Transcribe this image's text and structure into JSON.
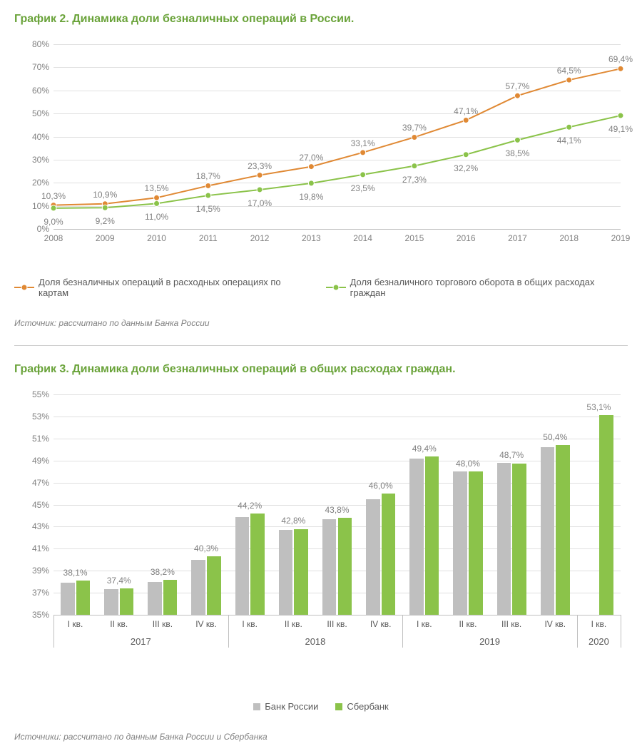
{
  "chart1": {
    "type": "line",
    "title": "График 2. Динамика доли безналичных операций в России.",
    "source": "Источник: рассчитано по данным Банка России",
    "categories": [
      "2008",
      "2009",
      "2010",
      "2011",
      "2012",
      "2013",
      "2014",
      "2015",
      "2016",
      "2017",
      "2018",
      "2019"
    ],
    "ylim": [
      0,
      80
    ],
    "ytick_step": 10,
    "y_suffix": "%",
    "grid_color": "#e0e0e0",
    "axis_color": "#bfbfbf",
    "background": "#ffffff",
    "series": [
      {
        "name": "Доля безналичных операций в расходных операциях по картам",
        "color": "#e08934",
        "marker": "circle",
        "line_width": 2,
        "values": [
          10.3,
          10.9,
          13.5,
          18.7,
          23.3,
          27.0,
          33.1,
          39.7,
          47.1,
          57.7,
          64.5,
          69.4
        ],
        "labels": [
          "10,3%",
          "10,9%",
          "13,5%",
          "18,7%",
          "23,3%",
          "27,0%",
          "33,1%",
          "39,7%",
          "47,1%",
          "57,7%",
          "64,5%",
          "69,4%"
        ]
      },
      {
        "name": "Доля безналичного торгового оборота в общих расходах граждан",
        "color": "#8bc34a",
        "marker": "circle",
        "line_width": 2,
        "values": [
          9.0,
          9.2,
          11.0,
          14.5,
          17.0,
          19.8,
          23.5,
          27.3,
          32.2,
          38.5,
          44.1,
          49.1
        ],
        "labels": [
          "9,0%",
          "9,2%",
          "11,0%",
          "14,5%",
          "17,0%",
          "19,8%",
          "23,5%",
          "27,3%",
          "32,2%",
          "38,5%",
          "44,1%",
          "49,1%"
        ]
      }
    ],
    "title_fontsize": 16,
    "label_fontsize": 12,
    "tick_fontsize": 12
  },
  "chart2": {
    "type": "bar",
    "title": "График 3. Динамика доли безналичных операций в общих расходах граждан.",
    "source": "Источники: рассчитано по данным Банка России и Сбербанка",
    "ylim": [
      35,
      55
    ],
    "ytick_step": 2,
    "y_suffix": "%",
    "grid_color": "#e0e0e0",
    "axis_color": "#bfbfbf",
    "background": "#ffffff",
    "bar_width": 0.32,
    "group_gap": 0.36,
    "categories": [
      "I кв.",
      "II кв.",
      "III кв.",
      "IV кв.",
      "I кв.",
      "II кв.",
      "III кв.",
      "IV кв.",
      "I кв.",
      "II кв.",
      "III кв.",
      "IV кв.",
      "I кв."
    ],
    "year_groups": [
      {
        "label": "2017",
        "span": [
          0,
          3
        ]
      },
      {
        "label": "2018",
        "span": [
          4,
          7
        ]
      },
      {
        "label": "2019",
        "span": [
          8,
          11
        ]
      },
      {
        "label": "2020",
        "span": [
          12,
          12
        ]
      }
    ],
    "series": [
      {
        "name": "Банк России",
        "color": "#bfbfbf",
        "values": [
          37.9,
          37.3,
          38.0,
          40.0,
          43.9,
          42.7,
          43.7,
          45.5,
          49.2,
          48.0,
          48.8,
          50.2,
          null
        ]
      },
      {
        "name": "Сбербанк",
        "color": "#8bc34a",
        "values": [
          38.1,
          37.4,
          38.2,
          40.3,
          44.2,
          42.8,
          43.8,
          46.0,
          49.4,
          48.0,
          48.7,
          50.4,
          53.1
        ]
      }
    ],
    "value_labels": [
      "38,1%",
      "37,4%",
      "38,2%",
      "40,3%",
      "44,2%",
      "42,8%",
      "43,8%",
      "46,0%",
      "49,4%",
      "48,0%",
      "48,7%",
      "50,4%",
      "53,1%"
    ],
    "title_fontsize": 16,
    "label_fontsize": 12,
    "tick_fontsize": 12
  }
}
